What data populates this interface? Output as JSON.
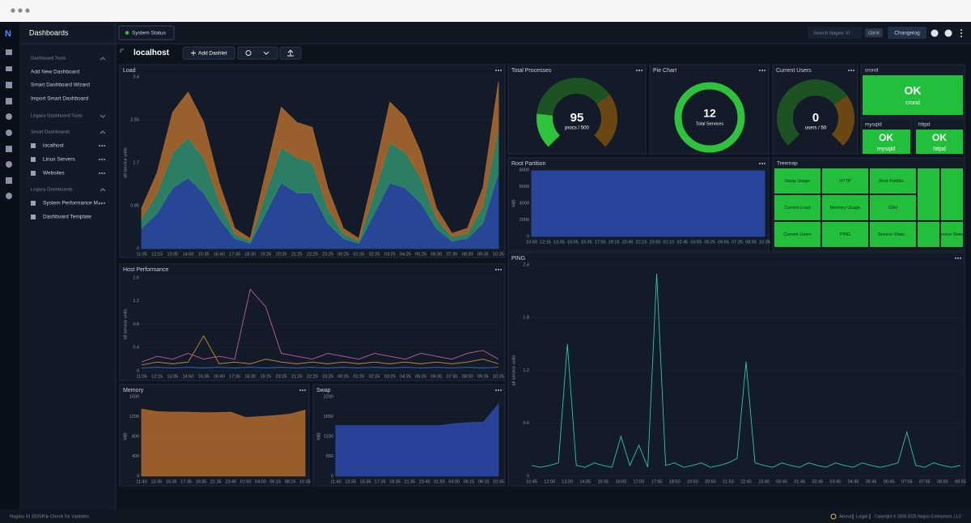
{
  "sidebar": {
    "title": "Dashboards",
    "sections": [
      {
        "title": "Dashboard Tools",
        "items": [
          "Add New Dashboard",
          "Smart Dashboard Wizard",
          "Import Smart Dashboard"
        ]
      },
      {
        "title": "Legacy Dashboard Tools"
      },
      {
        "title": "Smart Dashboards",
        "items": [
          "localhost",
          "Linux Servers",
          "Websites"
        ]
      },
      {
        "title": "Legacy Dashboards",
        "items": [
          "System Performance M...",
          "Dashboard Template"
        ]
      }
    ]
  },
  "topbar": {
    "status": "System Status",
    "search": "Search Nagios XI",
    "shortcut": "Ctrl K",
    "changelog": "Changelog"
  },
  "header": {
    "title": "localhost",
    "add_button": "Add Dashlet"
  },
  "status_tiles": [
    {
      "name": "crond",
      "state": "OK"
    },
    {
      "name": "mysqld",
      "state": "OK"
    },
    {
      "name": "httpd",
      "state": "OK"
    }
  ],
  "treemap": {
    "title": "Treemap",
    "cells": [
      "Swap Usage",
      "HTTP",
      "Root Partitio...",
      "Current Load",
      "Memory Usage",
      "SSH",
      "Current Users",
      "PING",
      "Service Statu...",
      "Service Statu..."
    ]
  },
  "footer": {
    "version": "Nagios XI 2026R1",
    "updates": "Check for Updates",
    "links": [
      "About",
      "Legal"
    ],
    "copyright": "Copyright © 2008-2025 Nagios Enterprises, LLC"
  },
  "chart_data": [
    {
      "type": "area",
      "title": "Load",
      "y_label": "all service units",
      "stacked": true,
      "grid": true,
      "categories": [
        "11:05",
        "12:15",
        "13:35",
        "14:50",
        "15:35",
        "16:40",
        "17:35",
        "18:30",
        "19:25",
        "20:25",
        "21:25",
        "22:25",
        "23:25",
        "00:25",
        "01:25",
        "02:25",
        "03:25",
        "04:25",
        "05:25",
        "06:30",
        "07:30",
        "08:30",
        "09:35",
        "10:35"
      ],
      "series": [
        {
          "color": "#2b4ba3",
          "values": [
            0.4,
            0.7,
            1.2,
            1.4,
            1.1,
            0.6,
            0.2,
            0.1,
            0.7,
            1.3,
            1.1,
            1.1,
            0.5,
            0.2,
            0.1,
            0.7,
            1.3,
            1.2,
            0.9,
            0.4,
            0.15,
            0.2,
            0.5,
            1.5
          ]
        },
        {
          "color": "#2f8a6c",
          "values": [
            0.2,
            0.4,
            0.7,
            0.8,
            0.7,
            0.35,
            0.1,
            0.05,
            0.4,
            0.7,
            0.7,
            0.6,
            0.3,
            0.1,
            0.05,
            0.4,
            0.8,
            0.7,
            0.5,
            0.2,
            0.08,
            0.1,
            0.35,
            0.9
          ]
        },
        {
          "color": "#a9682f",
          "values": [
            0.2,
            0.4,
            0.8,
            0.9,
            0.7,
            0.35,
            0.1,
            0.05,
            0.4,
            0.8,
            0.7,
            0.7,
            0.4,
            0.1,
            0.05,
            0.4,
            0.8,
            0.7,
            0.5,
            0.2,
            0.07,
            0.1,
            0.35,
            0.9
          ]
        }
      ],
      "ylim": [
        0,
        3.4
      ],
      "yticks": [
        0,
        0.85,
        1.7,
        2.55,
        3.4
      ]
    },
    {
      "type": "gauge",
      "title": "Total Processes",
      "value": 95,
      "max": 500,
      "caption": "procs / 500"
    },
    {
      "type": "pie",
      "title": "Pie Chart",
      "values": [
        12
      ],
      "center_label": "Total Services",
      "color": "#2fc23d"
    },
    {
      "type": "gauge",
      "title": "Current Users",
      "value": 0,
      "max": 50,
      "caption": "users / 50"
    },
    {
      "type": "area",
      "title": "Root Partition",
      "y_label": "MiB",
      "grid": true,
      "categories": [
        "10:50",
        "12:15",
        "13:35",
        "15:05",
        "16:35",
        "17:50",
        "19:15",
        "20:45",
        "22:15",
        "23:50",
        "01:10",
        "02:45",
        "03:55",
        "05:25",
        "06:55",
        "07:25",
        "08:55",
        "10:35"
      ],
      "series": [
        {
          "color": "#2c4aa8",
          "values": [
            7900,
            7900,
            7900,
            7900,
            7900,
            7900,
            7900,
            7900,
            7900,
            7900,
            7900,
            7900,
            7900,
            7900,
            7900,
            7900,
            7900,
            7900
          ]
        }
      ],
      "ylim": [
        0,
        8000
      ],
      "yticks": [
        0,
        2000,
        4000,
        6000,
        8000
      ]
    },
    {
      "type": "line",
      "title": "Host Performance",
      "y_label": "all service units",
      "grid": true,
      "categories": [
        "11:05",
        "12:15",
        "13:35",
        "14:50",
        "15:35",
        "16:40",
        "17:35",
        "18:30",
        "19:25",
        "20:25",
        "21:25",
        "22:25",
        "23:25",
        "00:25",
        "01:25",
        "02:25",
        "03:25",
        "04:25",
        "05:25",
        "06:30",
        "07:30",
        "08:30",
        "09:35",
        "10:35"
      ],
      "series": [
        {
          "color": "#c45aab",
          "values": [
            0.15,
            0.25,
            0.2,
            0.3,
            0.2,
            0.25,
            0.2,
            1.4,
            1.1,
            0.3,
            0.25,
            0.2,
            0.3,
            0.25,
            0.2,
            0.3,
            0.25,
            0.2,
            0.3,
            0.25,
            0.2,
            0.3,
            0.35,
            0.2
          ]
        },
        {
          "color": "#c98a3a",
          "values": [
            0.1,
            0.15,
            0.12,
            0.15,
            0.6,
            0.12,
            0.15,
            0.12,
            0.2,
            0.15,
            0.12,
            0.15,
            0.12,
            0.15,
            0.12,
            0.15,
            0.12,
            0.15,
            0.12,
            0.15,
            0.12,
            0.15,
            0.2,
            0.12
          ]
        },
        {
          "color": "#3d6fd0",
          "values": [
            0.05,
            0.06,
            0.05,
            0.06,
            0.05,
            0.06,
            0.05,
            0.06,
            0.05,
            0.06,
            0.05,
            0.06,
            0.05,
            0.06,
            0.05,
            0.06,
            0.05,
            0.06,
            0.05,
            0.06,
            0.05,
            0.06,
            0.05,
            0.06
          ]
        }
      ],
      "ylim": [
        0,
        1.6
      ],
      "yticks": [
        0,
        0.4,
        0.8,
        1.2,
        1.6
      ]
    },
    {
      "type": "area",
      "title": "Memory",
      "y_label": "MiB",
      "grid": true,
      "categories": [
        "11:40",
        "13:35",
        "15:35",
        "17:35",
        "19:35",
        "21:35",
        "23:40",
        "01:50",
        "04:00",
        "06:15",
        "08:15",
        "10:35"
      ],
      "series": [
        {
          "color": "#a8652c",
          "values": [
            1350,
            1300,
            1290,
            1290,
            1280,
            1280,
            1290,
            1180,
            1200,
            1220,
            1250,
            1330
          ]
        }
      ],
      "ylim": [
        0,
        1600
      ],
      "yticks": [
        0,
        400,
        800,
        1200,
        1600
      ]
    },
    {
      "type": "area",
      "title": "Swap",
      "y_label": "MiB",
      "grid": true,
      "categories": [
        "11:40",
        "13:35",
        "15:35",
        "17:35",
        "19:35",
        "21:35",
        "23:40",
        "01:50",
        "04:00",
        "06:15",
        "08:15",
        "10:35"
      ],
      "series": [
        {
          "color": "#2a47a5",
          "values": [
            1400,
            1400,
            1400,
            1400,
            1400,
            1400,
            1400,
            1400,
            1450,
            1480,
            1500,
            2000
          ]
        }
      ],
      "ylim": [
        0,
        2200
      ],
      "yticks": [
        0,
        550,
        1100,
        1650,
        2200
      ]
    },
    {
      "type": "line",
      "title": "PING",
      "y_label": "all service units",
      "grid": true,
      "categories": [
        "10:45",
        null,
        "12:00",
        null,
        "13:00",
        null,
        "14:05",
        null,
        "15:05",
        null,
        "16:05",
        null,
        "17:00",
        null,
        "17:50",
        null,
        "18:50",
        null,
        "19:50",
        null,
        "20:50",
        null,
        "21:50",
        null,
        "22:45",
        null,
        "23:45",
        null,
        "00:45",
        null,
        "01:45",
        null,
        "02:45",
        null,
        "03:45",
        null,
        "04:45",
        null,
        "05:45",
        null,
        "06:45",
        null,
        "07:05",
        null,
        "07:55",
        null,
        "08:55",
        null,
        "09:55"
      ],
      "series": [
        {
          "color": "#2ac8a8",
          "values": [
            0.12,
            0.1,
            0.12,
            0.15,
            1.5,
            0.12,
            0.1,
            0.15,
            0.12,
            0.1,
            0.45,
            0.12,
            0.35,
            0.1,
            2.3,
            0.12,
            0.15,
            0.1,
            0.12,
            0.15,
            0.1,
            0.12,
            0.15,
            0.2,
            1.3,
            0.15,
            0.12,
            0.1,
            0.15,
            0.12,
            0.1,
            0.15,
            0.12,
            0.1,
            0.15,
            0.12,
            0.1,
            0.15,
            0.12,
            0.1,
            0.12,
            0.15,
            0.5,
            0.12,
            0.1,
            0.15,
            0.12,
            0.1,
            0.12
          ]
        }
      ],
      "ylim": [
        0,
        2.4
      ],
      "yticks": [
        0,
        0.6,
        1.2,
        1.8,
        2.4
      ]
    }
  ]
}
